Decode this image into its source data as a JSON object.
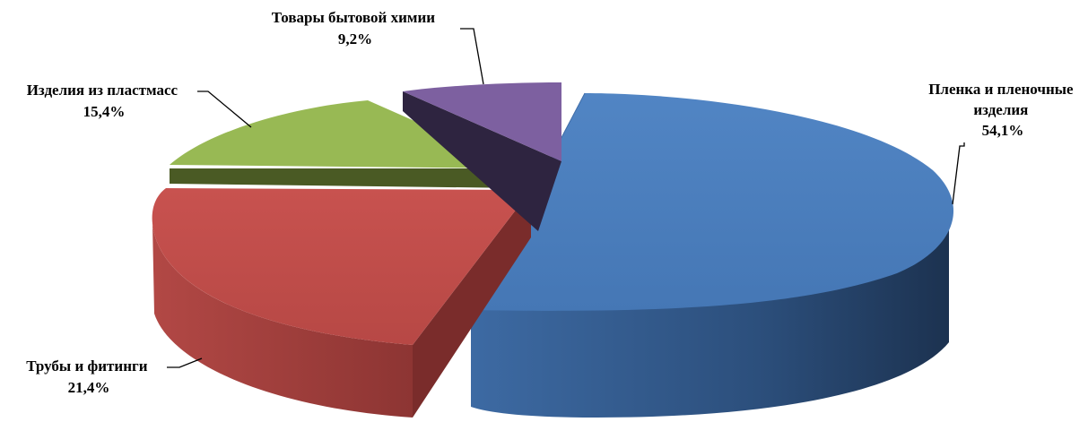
{
  "chart_data": {
    "type": "pie",
    "title": "",
    "categories": [
      "Пленка и пленочные изделия",
      "Трубы и фитинги",
      "Изделия из пластмасс",
      "Товары бытовой химии"
    ],
    "values": [
      54.1,
      21.4,
      15.4,
      9.2
    ],
    "value_labels": [
      "54,1%",
      "21,4%",
      "15,4%",
      "9,2%"
    ],
    "label_lines": [
      [
        "Пленка и пленочные",
        "изделия"
      ],
      [
        "Трубы и фитинги"
      ],
      [
        "Изделия из пластмасс"
      ],
      [
        "Товары бытовой химии"
      ]
    ],
    "colors": [
      "#4a7ebb",
      "#be4b48",
      "#98b954",
      "#7d60a0"
    ],
    "style": "3d-exploded",
    "legend": "none"
  }
}
